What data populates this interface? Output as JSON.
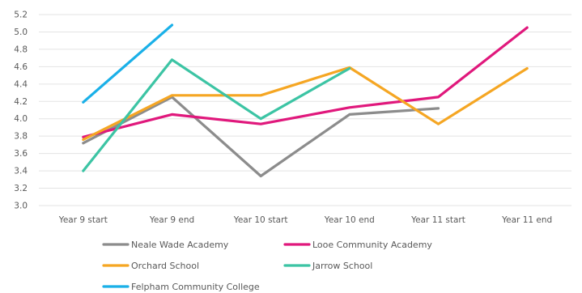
{
  "chart_data": {
    "type": "line",
    "categories": [
      "Year 9 start",
      "Year 9 end",
      "Year 10 start",
      "Year 10 end",
      "Year 11 start",
      "Year 11 end"
    ],
    "ylim": [
      3.0,
      5.2
    ],
    "yticks": [
      "3.0",
      "3.2",
      "3.4",
      "3.6",
      "3.8",
      "4.0",
      "4.2",
      "4.4",
      "4.6",
      "4.8",
      "5.0",
      "5.2"
    ],
    "grid": true,
    "legend_position": "bottom",
    "series": [
      {
        "name": "Neale Wade Academy",
        "color": "#8c8c8c",
        "values": [
          3.72,
          4.25,
          3.34,
          4.05,
          4.12,
          null
        ]
      },
      {
        "name": "Looe Community Academy",
        "color": "#e0187c",
        "values": [
          3.79,
          4.05,
          3.94,
          4.13,
          4.25,
          5.05
        ]
      },
      {
        "name": "Orchard School",
        "color": "#f5a623",
        "values": [
          3.76,
          4.27,
          4.27,
          4.59,
          3.94,
          4.58
        ]
      },
      {
        "name": "Jarrow School",
        "color": "#3cc4a4",
        "values": [
          3.4,
          4.68,
          4.0,
          4.58,
          null,
          null
        ]
      },
      {
        "name": "Felpham Community College",
        "color": "#1ab0e8",
        "values": [
          4.19,
          5.08,
          null,
          null,
          null,
          null
        ]
      }
    ]
  }
}
